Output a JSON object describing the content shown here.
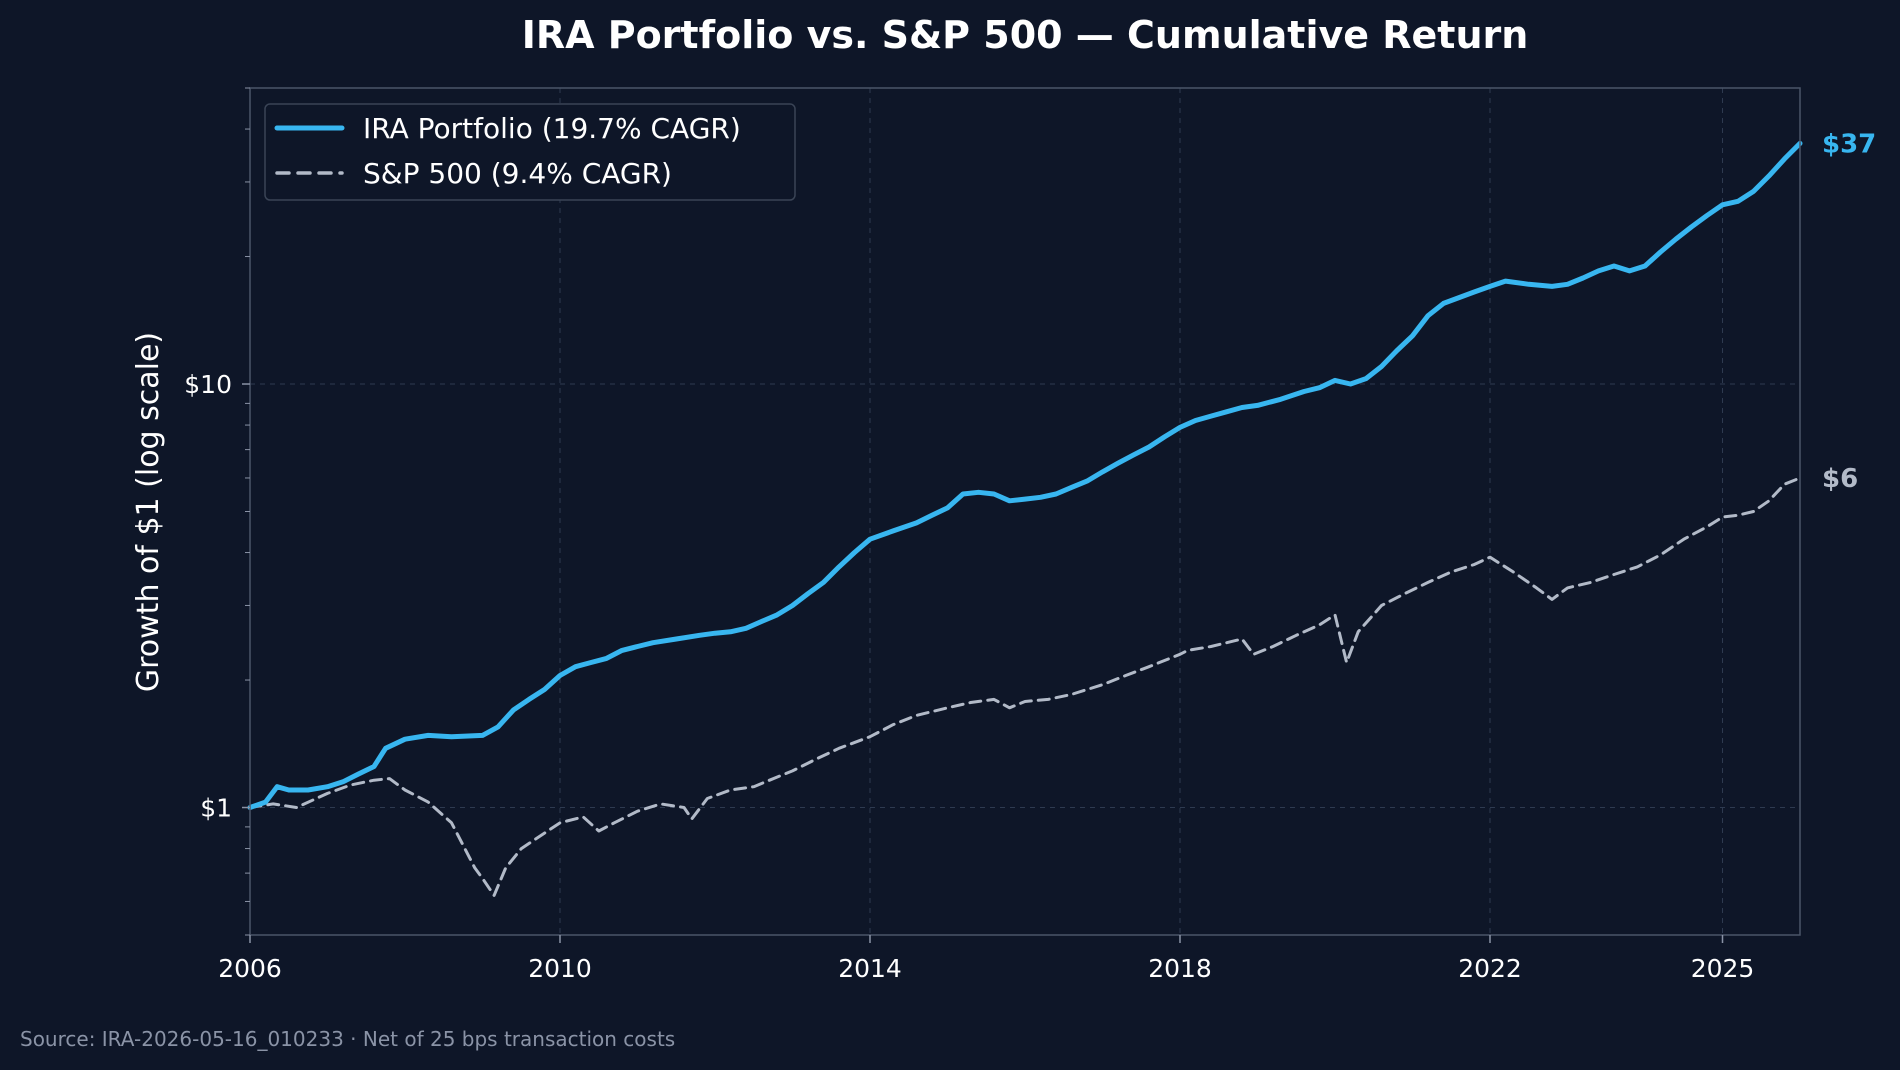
{
  "chart_data": {
    "type": "line",
    "title": "IRA Portfolio vs. S&P 500 — Cumulative Return",
    "ylabel": "Growth of $1 (log scale)",
    "xlabel": "",
    "y_scale": "log",
    "xlim": [
      2006,
      2026
    ],
    "ylim": [
      0.5,
      50
    ],
    "grid": true,
    "legend_position": "top-left",
    "x_ticks": [
      {
        "value": 2006,
        "label": "2006"
      },
      {
        "value": 2010,
        "label": "2010"
      },
      {
        "value": 2014,
        "label": "2014"
      },
      {
        "value": 2018,
        "label": "2018"
      },
      {
        "value": 2022,
        "label": "2022"
      },
      {
        "value": 2025,
        "label": "2025"
      }
    ],
    "y_ticks": [
      {
        "value": 1,
        "label": "$1"
      },
      {
        "value": 10,
        "label": "$10"
      }
    ],
    "series": [
      {
        "name": "IRA Portfolio  (19.7% CAGR)",
        "color": "#38b6f0",
        "style": "solid",
        "end_label": "$37",
        "x": [
          2006.0,
          2006.2,
          2006.35,
          2006.5,
          2006.75,
          2007.0,
          2007.2,
          2007.4,
          2007.6,
          2007.75,
          2008.0,
          2008.3,
          2008.6,
          2009.0,
          2009.2,
          2009.4,
          2009.6,
          2009.8,
          2010.0,
          2010.2,
          2010.4,
          2010.6,
          2010.8,
          2011.0,
          2011.2,
          2011.5,
          2011.8,
          2012.0,
          2012.2,
          2012.4,
          2012.6,
          2012.8,
          2013.0,
          2013.2,
          2013.4,
          2013.6,
          2013.8,
          2014.0,
          2014.3,
          2014.6,
          2014.8,
          2015.0,
          2015.2,
          2015.4,
          2015.6,
          2015.8,
          2016.0,
          2016.2,
          2016.4,
          2016.6,
          2016.8,
          2017.0,
          2017.2,
          2017.4,
          2017.6,
          2017.8,
          2018.0,
          2018.2,
          2018.4,
          2018.6,
          2018.8,
          2019.0,
          2019.3,
          2019.6,
          2019.8,
          2020.0,
          2020.2,
          2020.4,
          2020.6,
          2020.8,
          2021.0,
          2021.2,
          2021.4,
          2021.6,
          2021.8,
          2022.0,
          2022.2,
          2022.5,
          2022.8,
          2023.0,
          2023.2,
          2023.4,
          2023.6,
          2023.8,
          2024.0,
          2024.2,
          2024.4,
          2024.6,
          2024.8,
          2025.0,
          2025.2,
          2025.4,
          2025.6,
          2025.8,
          2026.0
        ],
        "values": [
          1.0,
          1.03,
          1.12,
          1.1,
          1.1,
          1.12,
          1.15,
          1.2,
          1.25,
          1.38,
          1.45,
          1.48,
          1.47,
          1.48,
          1.55,
          1.7,
          1.8,
          1.9,
          2.05,
          2.15,
          2.2,
          2.25,
          2.35,
          2.4,
          2.45,
          2.5,
          2.55,
          2.58,
          2.6,
          2.65,
          2.75,
          2.85,
          3.0,
          3.2,
          3.4,
          3.7,
          4.0,
          4.3,
          4.5,
          4.7,
          4.9,
          5.1,
          5.5,
          5.55,
          5.5,
          5.3,
          5.35,
          5.4,
          5.5,
          5.7,
          5.9,
          6.2,
          6.5,
          6.8,
          7.1,
          7.5,
          7.9,
          8.2,
          8.4,
          8.6,
          8.8,
          8.9,
          9.2,
          9.6,
          9.8,
          10.2,
          10.0,
          10.3,
          11.0,
          12.0,
          13.0,
          14.5,
          15.5,
          16.0,
          16.5,
          17.0,
          17.5,
          17.2,
          17.0,
          17.2,
          17.8,
          18.5,
          19.0,
          18.5,
          19.0,
          20.5,
          22.0,
          23.5,
          25.0,
          26.5,
          27.0,
          28.5,
          31.0,
          34.0,
          37.0
        ]
      },
      {
        "name": "S&P 500  (9.4% CAGR)",
        "color": "#b2bac8",
        "style": "dashed",
        "end_label": "$6",
        "x": [
          2006.0,
          2006.3,
          2006.6,
          2007.0,
          2007.3,
          2007.6,
          2007.8,
          2008.0,
          2008.3,
          2008.6,
          2008.9,
          2009.0,
          2009.15,
          2009.3,
          2009.5,
          2009.8,
          2010.0,
          2010.3,
          2010.5,
          2010.7,
          2011.0,
          2011.3,
          2011.6,
          2011.7,
          2011.9,
          2012.2,
          2012.5,
          2012.8,
          2013.0,
          2013.3,
          2013.6,
          2014.0,
          2014.3,
          2014.6,
          2015.0,
          2015.3,
          2015.6,
          2015.8,
          2016.0,
          2016.3,
          2016.6,
          2017.0,
          2017.3,
          2017.6,
          2018.0,
          2018.1,
          2018.4,
          2018.8,
          2018.95,
          2019.2,
          2019.5,
          2019.8,
          2020.0,
          2020.15,
          2020.3,
          2020.6,
          2020.9,
          2021.2,
          2021.5,
          2021.8,
          2022.0,
          2022.3,
          2022.6,
          2022.8,
          2023.0,
          2023.3,
          2023.6,
          2023.9,
          2024.2,
          2024.5,
          2024.8,
          2025.0,
          2025.2,
          2025.4,
          2025.6,
          2025.8,
          2026.0
        ],
        "values": [
          1.0,
          1.02,
          1.0,
          1.08,
          1.13,
          1.16,
          1.17,
          1.1,
          1.03,
          0.92,
          0.72,
          0.68,
          0.62,
          0.72,
          0.8,
          0.87,
          0.92,
          0.95,
          0.88,
          0.92,
          0.98,
          1.02,
          1.0,
          0.94,
          1.05,
          1.1,
          1.12,
          1.18,
          1.22,
          1.3,
          1.38,
          1.47,
          1.57,
          1.65,
          1.72,
          1.77,
          1.8,
          1.72,
          1.78,
          1.8,
          1.85,
          1.95,
          2.05,
          2.15,
          2.3,
          2.35,
          2.4,
          2.5,
          2.3,
          2.4,
          2.55,
          2.7,
          2.85,
          2.2,
          2.6,
          3.0,
          3.2,
          3.4,
          3.6,
          3.75,
          3.9,
          3.6,
          3.3,
          3.1,
          3.3,
          3.4,
          3.55,
          3.7,
          3.95,
          4.3,
          4.6,
          4.85,
          4.9,
          5.0,
          5.3,
          5.8,
          6.0
        ]
      }
    ]
  },
  "footer": {
    "source": "Source: IRA-2026-05-16_010233 · Net of 25 bps transaction costs"
  }
}
